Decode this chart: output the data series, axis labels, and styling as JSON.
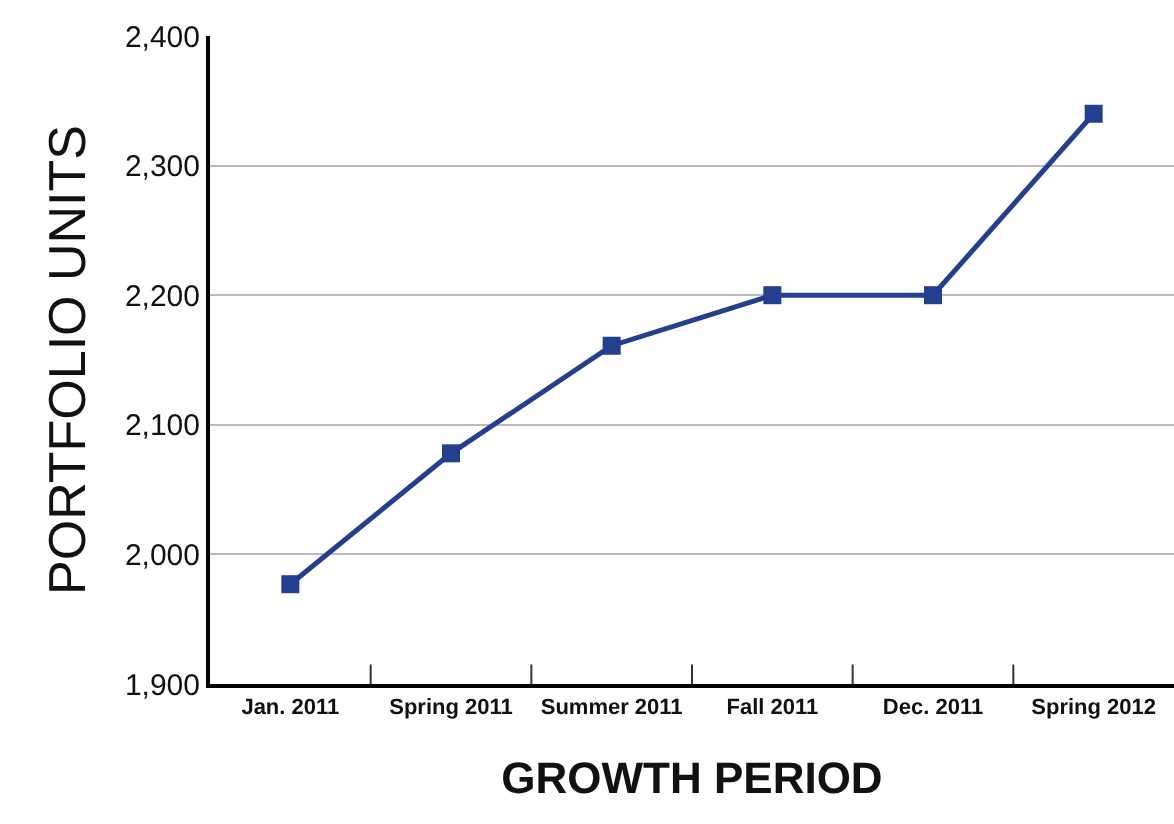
{
  "chart_data": {
    "type": "line",
    "xlabel": "GROWTH PERIOD",
    "ylabel": "PORTFOLIO UNITS",
    "categories": [
      "Jan. 2011",
      "Spring 2011",
      "Summer 2011",
      "Fall 2011",
      "Dec. 2011",
      "Spring 2012"
    ],
    "series": [
      {
        "color": "#233f8f",
        "values": [
          1977,
          2078,
          2161,
          2200,
          2200,
          2340
        ]
      }
    ],
    "ylim": [
      1900,
      2400
    ],
    "yticks": [
      {
        "value": 1900,
        "label": "1,900"
      },
      {
        "value": 2000,
        "label": "2,000"
      },
      {
        "value": 2100,
        "label": "2,100"
      },
      {
        "value": 2200,
        "label": "2,200"
      },
      {
        "value": 2300,
        "label": "2,300"
      },
      {
        "value": 2400,
        "label": "2,400"
      }
    ],
    "grid": "y",
    "marker": "square",
    "line_style": "solid"
  }
}
